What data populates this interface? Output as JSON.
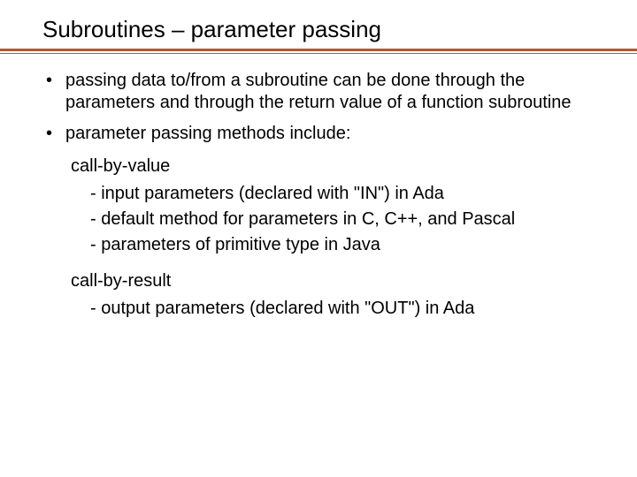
{
  "title": "Subroutines – parameter passing",
  "bullets": {
    "b1": "passing data to/from a subroutine can be done through the parameters and through the return value of a function subroutine",
    "b2": "parameter passing methods include:"
  },
  "groups": {
    "g1_label": "call-by-value",
    "g1_items": {
      "i1": "- input parameters (declared with \"IN\") in Ada",
      "i2": "- default method for parameters in C, C++, and Pascal",
      "i3": "- parameters of primitive type in Java"
    },
    "g2_label": "call-by-result",
    "g2_items": {
      "i1": "- output parameters (declared with \"OUT\") in Ada"
    }
  },
  "colors": {
    "rule": "#b05a2a",
    "text": "#000000",
    "bg": "#ffffff"
  },
  "typography": {
    "title_fontsize": 26,
    "body_fontsize": 20,
    "font_family": "Arial"
  }
}
